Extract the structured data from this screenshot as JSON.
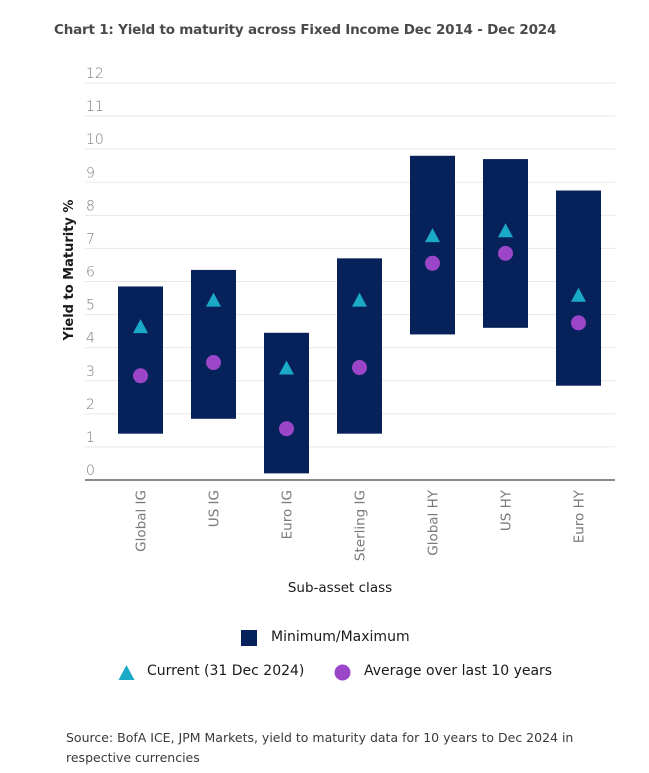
{
  "chart_data": {
    "type": "range-bar-with-markers",
    "title": "Chart 1: Yield to maturity across Fixed Income Dec 2014 - Dec 2024",
    "xlabel": "Sub-asset class",
    "ylabel": "Yield to Maturity %",
    "ylim": [
      0,
      12
    ],
    "yticks": [
      0,
      1,
      2,
      3,
      4,
      5,
      6,
      7,
      8,
      9,
      10,
      11,
      12
    ],
    "grid": true,
    "categories": [
      "Global IG",
      "US IG",
      "Euro IG",
      "Sterling IG",
      "Global HY",
      "US HY",
      "Euro HY"
    ],
    "series": [
      {
        "name": "Minimum/Maximum",
        "kind": "range",
        "min": [
          1.4,
          1.85,
          0.2,
          1.4,
          4.4,
          4.6,
          2.85
        ],
        "max": [
          5.85,
          6.35,
          4.45,
          6.7,
          9.8,
          9.7,
          8.75
        ],
        "color": "#07215b"
      },
      {
        "name": "Current (31 Dec 2024)",
        "kind": "triangle",
        "values": [
          4.6,
          5.4,
          3.35,
          5.4,
          7.35,
          7.5,
          5.55
        ],
        "color": "#1ba9c8"
      },
      {
        "name": "Average over last 10 years",
        "kind": "circle",
        "values": [
          3.15,
          3.55,
          1.55,
          3.4,
          6.55,
          6.85,
          4.75
        ],
        "color": "#9b45c8"
      }
    ],
    "legend": {
      "placement": "bottom",
      "range_label": "Minimum/Maximum",
      "current_label": "Current (31 Dec 2024)",
      "average_label": "Average over last 10 years"
    },
    "source": "Source: BofA ICE, JPM Markets, yield to maturity data for 10 years to Dec 2024 in respective currencies"
  }
}
